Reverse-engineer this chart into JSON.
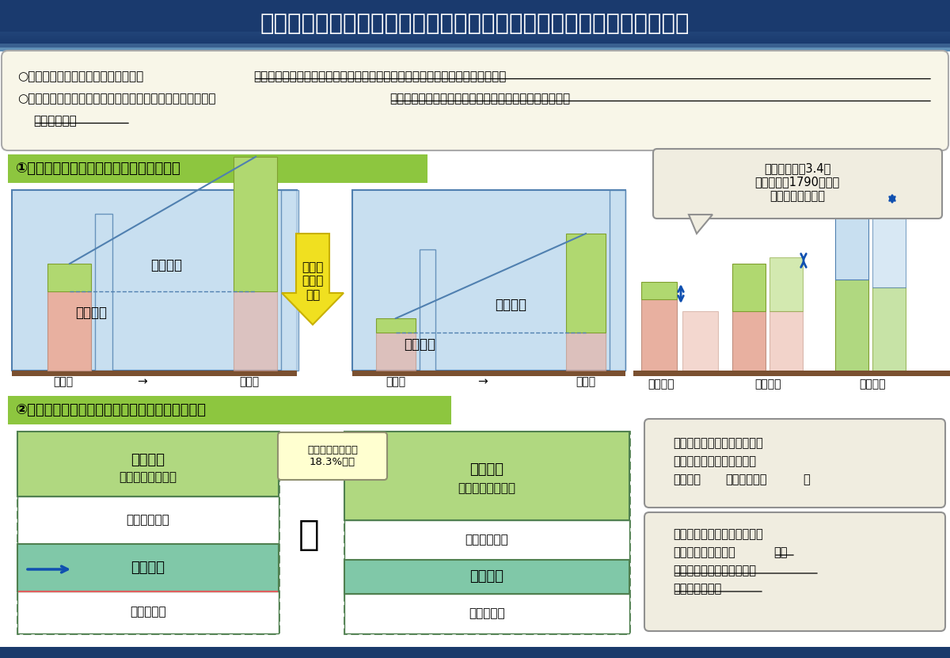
{
  "title": "基礎年金と報酬比例のマクロ経済スライド調整期間の一致による効果",
  "bg_color": "#ffffff",
  "title_bar_top": "#1a3a6b",
  "title_bar_bottom": "#2a6090",
  "separator_color": "#5090c0",
  "bullet_box_bg": "#f8f6e8",
  "bullet_box_border": "#aaaaaa",
  "section1_title": "①厚生年金の所得再分配機能の低下の防止",
  "section2_title": "②保険料固定方式の下での総給付費の低下の防止",
  "section_green_bg": "#8dc63f",
  "section_green_border": "#6a9a2a",
  "note1_text": "モデル年金の3.4倍\n（夫婦年収1790万円）\n未満は年金額が増",
  "note3_text": "基礎年金水準が低下すると、\n保険料財源は、報酬比例へ\nシフト（保険料は不変）",
  "note4_text": "基礎年金水準が低下すると、\n国庫負担も低下し、基礎\n年金・報酬比例を合算した\n総給付費も低下",
  "note4_bold": "基礎\n年金・報酬比例を合算した\n総給付費も低下",
  "arrow_label": "再分配\n機能の\n低下",
  "hoshu_label_left": "報酬比例",
  "kiso_label_left": "基礎年金",
  "hoshu_label_right": "報酬比例",
  "kiso_label_right": "基礎年金",
  "xlabel_low": "低所得",
  "xlabel_arrow": "→",
  "xlabel_high": "高所得",
  "xlabel_low_layer": "低所得層",
  "xlabel_mid_layer": "中所得層",
  "xlabel_high_layer": "高所得層",
  "colors": {
    "kiso_pink": "#e8b0a0",
    "hoshu_green": "#a8d060",
    "bar_blue_fill": "#c8dff0",
    "bar_blue_border": "#5080b0",
    "baseline_brown": "#7a5030",
    "arrow_yellow_fill": "#f0e020",
    "arrow_yellow_border": "#c8b000",
    "blue_double_arrow": "#1050b0",
    "note_box_bg": "#f0ede0",
    "note_box_border": "#909090",
    "bottom_bar": "#1a3a6b",
    "kiso_teal": "#80c8a8",
    "hoshu_green2": "#b0d880",
    "white": "#ffffff",
    "dashed_green": "#508050",
    "hoshu_fill_left": "#b0d870"
  }
}
